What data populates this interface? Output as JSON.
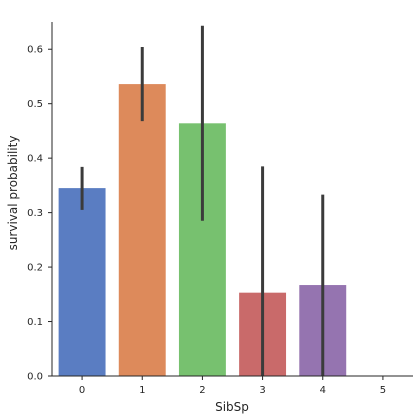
{
  "chart_data": {
    "type": "bar",
    "xlabel": "SibSp",
    "ylabel": "survival probability",
    "categories": [
      "0",
      "1",
      "2",
      "3",
      "4",
      "5"
    ],
    "values": [
      0.345,
      0.536,
      0.464,
      0.153,
      0.167,
      0.0
    ],
    "ci_low": [
      0.305,
      0.468,
      0.285,
      0.0,
      0.0,
      null
    ],
    "ci_high": [
      0.384,
      0.604,
      0.643,
      0.385,
      0.333,
      null
    ],
    "colors": [
      "#5a7dc2",
      "#dd8a5b",
      "#77c16f",
      "#c96a6a",
      "#9574b0",
      "#d6bc82"
    ],
    "errorbar_color": "#3b3b3b",
    "ylim": [
      0,
      0.65
    ],
    "yticks": [
      "0.0",
      "0.1",
      "0.2",
      "0.3",
      "0.4",
      "0.5",
      "0.6"
    ],
    "grid": false,
    "legend": "none"
  }
}
